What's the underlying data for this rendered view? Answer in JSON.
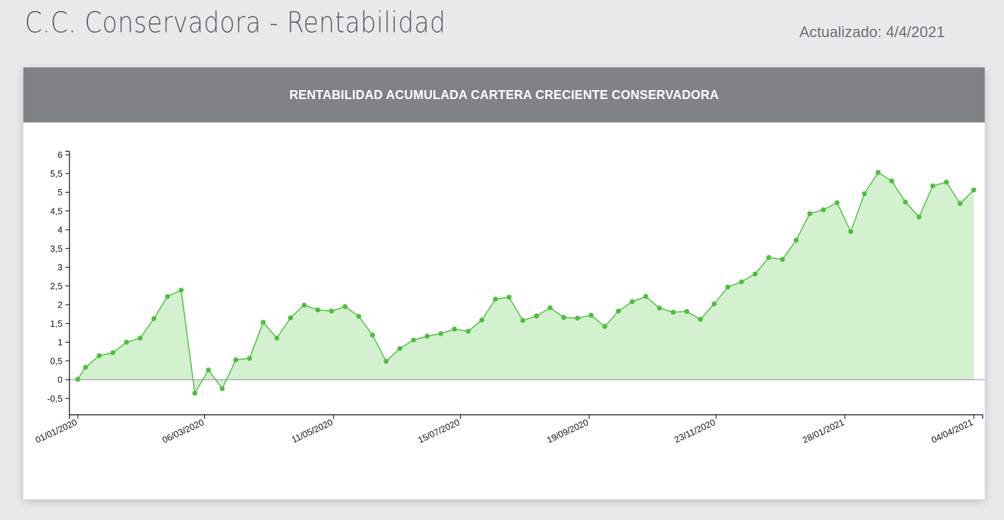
{
  "page": {
    "title": "C.C. Conservadora - Rentabilidad",
    "updated": "Actualizado: 4/4/2021"
  },
  "colors": {
    "header_bg": "#7f8287",
    "line": "#4cbf3c",
    "area": "#d3f0cf",
    "background": "#e8e9ec"
  },
  "chart_data": {
    "type": "area",
    "title": "RENTABILIDAD ACUMULADA CARTERA CRECIENTE CONSERVADORA",
    "xlabel": "",
    "ylabel": "",
    "ylim": [
      -1,
      6.1
    ],
    "y_ticks": [
      -0.5,
      0,
      0.5,
      1,
      1.5,
      2,
      2.5,
      3,
      3.5,
      4,
      4.5,
      5,
      5.5,
      6
    ],
    "y_tick_labels": [
      "-0,5",
      "0",
      "0,5",
      "1",
      "1,5",
      "2",
      "2,5",
      "3",
      "3,5",
      "4",
      "4,5",
      "5",
      "5,5",
      "6"
    ],
    "x_range": [
      "2019-12-27",
      "2021-04-10"
    ],
    "x_ticks": [
      "2020-01-01",
      "2020-03-06",
      "2020-05-11",
      "2020-07-15",
      "2020-09-19",
      "2020-11-23",
      "2021-01-28",
      "2021-04-04"
    ],
    "x_tick_labels": [
      "01/01/2020",
      "06/03/2020",
      "11/05/2020",
      "15/07/2020",
      "19/09/2020",
      "23/11/2020",
      "28/01/2021",
      "04/04/2021"
    ],
    "grid": false,
    "legend": "none",
    "series": [
      {
        "x": [
          "2020-01-01",
          "2020-01-05",
          "2020-01-12",
          "2020-01-19",
          "2020-01-26",
          "2020-02-02",
          "2020-02-09",
          "2020-02-16",
          "2020-02-23",
          "2020-03-01",
          "2020-03-08",
          "2020-03-15",
          "2020-03-22",
          "2020-03-29",
          "2020-04-05",
          "2020-04-12",
          "2020-04-19",
          "2020-04-26",
          "2020-05-03",
          "2020-05-10",
          "2020-05-17",
          "2020-05-24",
          "2020-05-31",
          "2020-06-07",
          "2020-06-14",
          "2020-06-21",
          "2020-06-28",
          "2020-07-05",
          "2020-07-12",
          "2020-07-19",
          "2020-07-26",
          "2020-08-02",
          "2020-08-09",
          "2020-08-16",
          "2020-08-23",
          "2020-08-30",
          "2020-09-06",
          "2020-09-13",
          "2020-09-20",
          "2020-09-27",
          "2020-10-04",
          "2020-10-11",
          "2020-10-18",
          "2020-10-25",
          "2020-11-01",
          "2020-11-08",
          "2020-11-15",
          "2020-11-22",
          "2020-11-29",
          "2020-12-06",
          "2020-12-13",
          "2020-12-20",
          "2020-12-27",
          "2021-01-03",
          "2021-01-10",
          "2021-01-17",
          "2021-01-24",
          "2021-01-31",
          "2021-02-07",
          "2021-02-14",
          "2021-02-21",
          "2021-02-28",
          "2021-03-07",
          "2021-03-14",
          "2021-03-21",
          "2021-03-28",
          "2021-04-04"
        ],
        "values": [
          0.01,
          0.33,
          0.64,
          0.72,
          1.0,
          1.11,
          1.63,
          2.22,
          2.39,
          -0.36,
          0.26,
          -0.24,
          0.53,
          0.57,
          1.53,
          1.11,
          1.65,
          1.99,
          1.86,
          1.83,
          1.95,
          1.69,
          1.19,
          0.49,
          0.83,
          1.06,
          1.16,
          1.23,
          1.35,
          1.29,
          1.59,
          2.15,
          2.2,
          1.58,
          1.7,
          1.92,
          1.66,
          1.64,
          1.72,
          1.42,
          1.83,
          2.08,
          2.22,
          1.91,
          1.8,
          1.82,
          1.61,
          2.02,
          2.47,
          2.61,
          2.82,
          3.26,
          3.21,
          3.72,
          4.43,
          4.53,
          4.72,
          3.95,
          4.96,
          5.53,
          5.3,
          4.74,
          4.34,
          5.17,
          5.27,
          4.7,
          5.06
        ]
      }
    ]
  }
}
